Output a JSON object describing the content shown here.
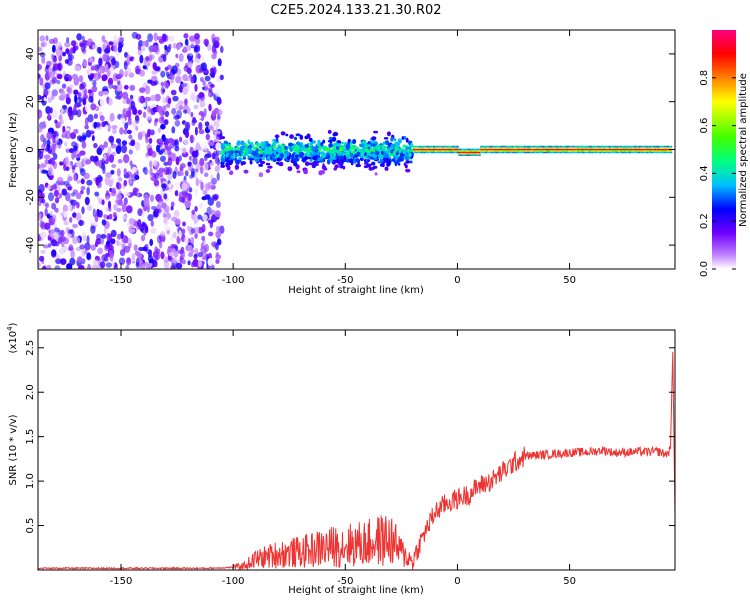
{
  "title": "C2E5.2024.133.21.30.R02",
  "chart_data": [
    {
      "type": "heatmap",
      "name": "spectrogram",
      "xlabel": "Height of straight line (km)",
      "ylabel": "Frequency (Hz)",
      "xlim": [
        -187,
        97
      ],
      "ylim": [
        -50,
        50
      ],
      "xticks": [
        -150,
        -100,
        -50,
        0,
        50
      ],
      "yticks": [
        -40,
        -20,
        0,
        20,
        40
      ],
      "colorbar": {
        "label": "Normalized spectral amplitude",
        "range": [
          0,
          1
        ],
        "ticks": [
          0.0,
          0.2,
          0.4,
          0.6,
          0.8
        ],
        "tick_labels": [
          "0.0",
          "0.2",
          "0.4",
          "0.6",
          "0.8"
        ],
        "colormap": [
          "#ffffff",
          "#c080ff",
          "#7000ff",
          "#0000ff",
          "#00c0ff",
          "#00ff80",
          "#40ff00",
          "#ffff00",
          "#ff8000",
          "#ff0000",
          "#ff0080"
        ]
      },
      "regions": [
        {
          "x": [
            -187,
            -105
          ],
          "freq_spread": [
            -50,
            48
          ],
          "amplitude": [
            0.0,
            0.25
          ]
        },
        {
          "x": [
            -105,
            -20
          ],
          "freq_spread": [
            -10,
            10
          ],
          "amplitude": [
            0.1,
            0.5
          ]
        },
        {
          "x": [
            -20,
            95
          ],
          "freq_center": 0,
          "freq_spread": [
            -2,
            2
          ],
          "amplitude": [
            0.7,
            1.0
          ]
        }
      ]
    },
    {
      "type": "line",
      "name": "snr",
      "xlabel": "Height of straight line (km)",
      "ylabel": "SNR (10 * v/v)",
      "scale_label": "(x10",
      "scale_exp": "4",
      "scale_close": ")",
      "xlim": [
        -187,
        97
      ],
      "ylim": [
        0,
        2.7
      ],
      "xticks": [
        -150,
        -100,
        -50,
        0,
        50
      ],
      "yticks": [
        0.5,
        1.0,
        1.5,
        2.0,
        2.5
      ],
      "ytick_labels": [
        "0.5",
        "1.0",
        "1.5",
        "2.0",
        "2.5"
      ],
      "color": "#ee3333",
      "series": [
        {
          "x": [
            -187,
            -150,
            -110,
            -100,
            -95,
            -90,
            -80,
            -70,
            -60,
            -50,
            -40,
            -35,
            -30,
            -25,
            -20,
            -15,
            -10,
            -5,
            0,
            5,
            10,
            15,
            20,
            25,
            30,
            40,
            50,
            60,
            65,
            70,
            80,
            90,
            93,
            95,
            96,
            97
          ],
          "y": [
            0.02,
            0.02,
            0.02,
            0.03,
            0.05,
            0.12,
            0.18,
            0.2,
            0.25,
            0.28,
            0.3,
            0.33,
            0.35,
            0.2,
            0.1,
            0.4,
            0.65,
            0.75,
            0.8,
            0.85,
            0.95,
            1.0,
            1.1,
            1.2,
            1.28,
            1.3,
            1.32,
            1.33,
            1.35,
            1.32,
            1.33,
            1.33,
            1.3,
            1.35,
            2.5,
            0.6
          ]
        }
      ]
    }
  ]
}
